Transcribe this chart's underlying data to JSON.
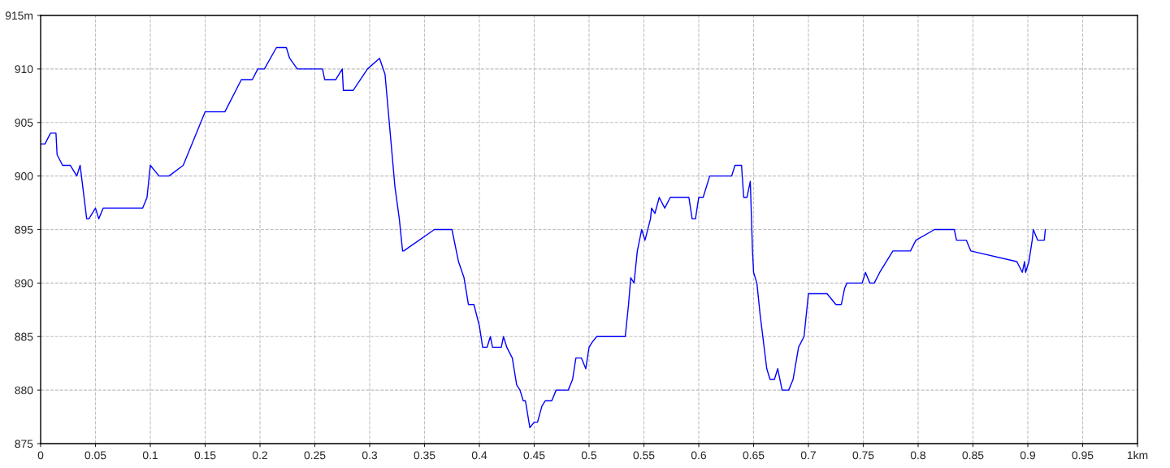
{
  "chart_data": {
    "type": "line",
    "x": [
      0,
      0.004,
      0.009,
      0.014,
      0.015,
      0.02,
      0.027,
      0.033,
      0.036,
      0.042,
      0.044,
      0.05,
      0.053,
      0.057,
      0.093,
      0.097,
      0.1,
      0.108,
      0.117,
      0.13,
      0.15,
      0.168,
      0.183,
      0.193,
      0.198,
      0.204,
      0.215,
      0.224,
      0.227,
      0.234,
      0.257,
      0.259,
      0.269,
      0.275,
      0.276,
      0.285,
      0.298,
      0.309,
      0.314,
      0.317,
      0.323,
      0.327,
      0.33,
      0.331,
      0.359,
      0.375,
      0.381,
      0.386,
      0.39,
      0.395,
      0.4,
      0.403,
      0.407,
      0.41,
      0.412,
      0.42,
      0.422,
      0.425,
      0.43,
      0.434,
      0.437,
      0.44,
      0.442,
      0.446,
      0.45,
      0.453,
      0.457,
      0.46,
      0.466,
      0.47,
      0.481,
      0.485,
      0.488,
      0.493,
      0.497,
      0.5,
      0.503,
      0.507,
      0.533,
      0.536,
      0.538,
      0.541,
      0.544,
      0.546,
      0.548,
      0.551,
      0.556,
      0.557,
      0.56,
      0.564,
      0.569,
      0.574,
      0.591,
      0.594,
      0.597,
      0.6,
      0.604,
      0.61,
      0.63,
      0.633,
      0.639,
      0.641,
      0.644,
      0.647,
      0.649,
      0.65,
      0.653,
      0.656,
      0.662,
      0.665,
      0.669,
      0.672,
      0.676,
      0.682,
      0.686,
      0.691,
      0.696,
      0.7,
      0.717,
      0.725,
      0.73,
      0.733,
      0.735,
      0.749,
      0.752,
      0.756,
      0.76,
      0.765,
      0.777,
      0.793,
      0.798,
      0.815,
      0.833,
      0.835,
      0.844,
      0.848,
      0.89,
      0.895,
      0.897,
      0.898,
      0.901,
      0.904,
      0.905,
      0.909,
      0.915,
      0.916
    ],
    "series": [
      {
        "color": "#0000ff",
        "values": [
          903,
          903,
          904,
          904,
          902,
          901,
          901,
          900,
          901,
          896,
          896,
          897,
          896,
          897,
          897,
          898,
          901,
          900,
          900,
          901,
          906,
          906,
          909,
          909,
          910,
          910,
          912,
          912,
          911,
          910,
          910,
          909,
          909,
          910,
          908,
          908,
          910,
          911,
          909.5,
          906,
          899,
          896,
          893,
          893,
          895,
          895,
          892,
          890.5,
          888,
          888,
          886,
          884,
          884,
          885,
          884,
          884,
          885,
          884,
          883,
          880.5,
          880,
          879,
          879,
          876.5,
          877,
          877,
          878.5,
          879,
          879,
          880,
          880,
          881,
          883,
          883,
          882,
          884,
          884.5,
          885,
          885,
          888,
          890.5,
          890,
          893,
          894,
          895,
          894,
          896,
          897,
          896.5,
          898,
          897,
          898,
          898,
          896,
          896,
          898,
          898,
          900,
          900,
          901,
          901,
          898,
          898,
          899.5,
          893,
          891,
          890,
          887,
          882,
          881,
          881,
          882,
          880,
          880,
          881,
          884,
          885,
          889,
          889,
          888,
          888,
          889.5,
          890,
          890,
          891,
          890,
          890,
          891,
          893,
          893,
          894,
          895,
          895,
          894,
          894,
          893,
          892,
          891,
          892,
          891,
          892,
          894,
          895,
          894,
          894,
          895
        ]
      }
    ],
    "xlim": [
      0,
      1
    ],
    "xticks": [
      0,
      0.05,
      0.1,
      0.15,
      0.2,
      0.25,
      0.3,
      0.35,
      0.4,
      0.45,
      0.5,
      0.55,
      0.6,
      0.65,
      0.7,
      0.75,
      0.8,
      0.85,
      0.9,
      0.95,
      {
        "value": 1,
        "label": "1km"
      }
    ],
    "ylim": [
      875,
      915
    ],
    "yticks": [
      875,
      880,
      885,
      890,
      895,
      900,
      905,
      910,
      {
        "value": 915,
        "label": "915m"
      }
    ],
    "grid": true,
    "line_style": "solid"
  }
}
